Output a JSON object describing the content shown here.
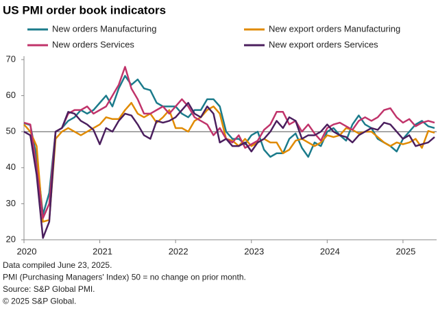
{
  "chart_data": {
    "type": "line",
    "title": "US PMI order book indicators",
    "categories": [
      "2020",
      null,
      null,
      null,
      null,
      null,
      null,
      null,
      null,
      null,
      null,
      null,
      "2021",
      null,
      null,
      null,
      null,
      null,
      null,
      null,
      null,
      null,
      null,
      null,
      "2022",
      null,
      null,
      null,
      null,
      null,
      null,
      null,
      null,
      null,
      null,
      null,
      "2023",
      null,
      null,
      null,
      null,
      null,
      null,
      null,
      null,
      null,
      null,
      null,
      "2024",
      null,
      null,
      null,
      null,
      null,
      null,
      null,
      null,
      null,
      null,
      null,
      "2025",
      null,
      null,
      null,
      null,
      null
    ],
    "series": [
      {
        "name": "New orders Manufacturing",
        "color": "#1b7b8b",
        "values": [
          52.4,
          51.8,
          43,
          27,
          33,
          50,
          51,
          53,
          54,
          56,
          55,
          56,
          58,
          60,
          57,
          62,
          65.5,
          63,
          64.5,
          62,
          61.5,
          58,
          57,
          57,
          57,
          55,
          54,
          56,
          56,
          59,
          59,
          57,
          50,
          48,
          48,
          46.5,
          49,
          50,
          45,
          43,
          44,
          44,
          48,
          49.5,
          45.5,
          43,
          47,
          46,
          50,
          51,
          49,
          47.5,
          52,
          54.5,
          52,
          51,
          48,
          47,
          46,
          44.5,
          48,
          50,
          52,
          53,
          51.5,
          51
        ]
      },
      {
        "name": "New export orders Manufacturing",
        "color": "#e08a00",
        "values": [
          52,
          50,
          46,
          25,
          25.5,
          48,
          50,
          51,
          50,
          49,
          50,
          51,
          52,
          54,
          53.5,
          53.5,
          56,
          58,
          55,
          54,
          55,
          52.5,
          54,
          56,
          51,
          51,
          50,
          53,
          54,
          56,
          57,
          55,
          48,
          47.5,
          46,
          48,
          46,
          47,
          48,
          47,
          47,
          44,
          45,
          47.5,
          48,
          47,
          46,
          47,
          49,
          48.5,
          49,
          51,
          50.5,
          49.5,
          50,
          50,
          48.5,
          47,
          46,
          47,
          46.5,
          47,
          48,
          45.5,
          50.2,
          49.7
        ]
      },
      {
        "name": "New orders Services",
        "color": "#c0336a",
        "values": [
          52.5,
          52,
          40,
          26,
          30,
          50,
          51,
          55,
          56,
          56,
          57,
          55,
          56,
          57,
          60,
          63,
          68,
          62,
          59,
          55,
          55,
          56,
          57,
          55,
          57,
          59,
          57,
          54,
          53,
          52,
          49,
          51,
          48,
          47,
          49,
          45.5,
          46.5,
          47.5,
          50.5,
          52,
          55.5,
          55.5,
          52,
          53,
          50,
          52,
          49.5,
          47.5,
          51,
          52,
          52.5,
          51.5,
          50.5,
          53,
          54,
          53,
          54,
          56,
          56.5,
          54,
          52.5,
          53.5,
          51.5,
          52.5,
          53,
          52.5
        ]
      },
      {
        "name": "New export orders Services",
        "color": "#4b1f5e",
        "values": [
          50,
          49,
          38,
          20.5,
          25,
          50,
          51,
          55.5,
          55,
          53,
          52,
          50.5,
          46.5,
          51,
          50,
          53,
          55,
          54.5,
          52,
          49,
          48,
          53,
          52.5,
          53,
          54,
          56,
          58,
          55,
          54,
          57,
          55,
          47,
          48,
          46,
          46,
          47,
          44.5,
          47,
          48,
          50,
          53,
          51,
          54,
          53,
          48,
          49,
          49,
          50,
          52,
          50,
          49,
          48.5,
          47,
          49,
          50,
          51,
          50.5,
          52.5,
          52,
          50,
          48,
          49,
          46,
          46.5,
          47,
          48.5
        ]
      }
    ],
    "ylim": [
      20,
      70
    ],
    "yticks": [
      20,
      30,
      40,
      50,
      60,
      70
    ],
    "reference_line": 50,
    "notes": [
      "Data compiled June 23, 2025.",
      "PMI (Purchasing Managers' Index) 50 =  no change on prior month.",
      "Source: S&P Global PMI.",
      "© 2025 S&P Global."
    ]
  }
}
